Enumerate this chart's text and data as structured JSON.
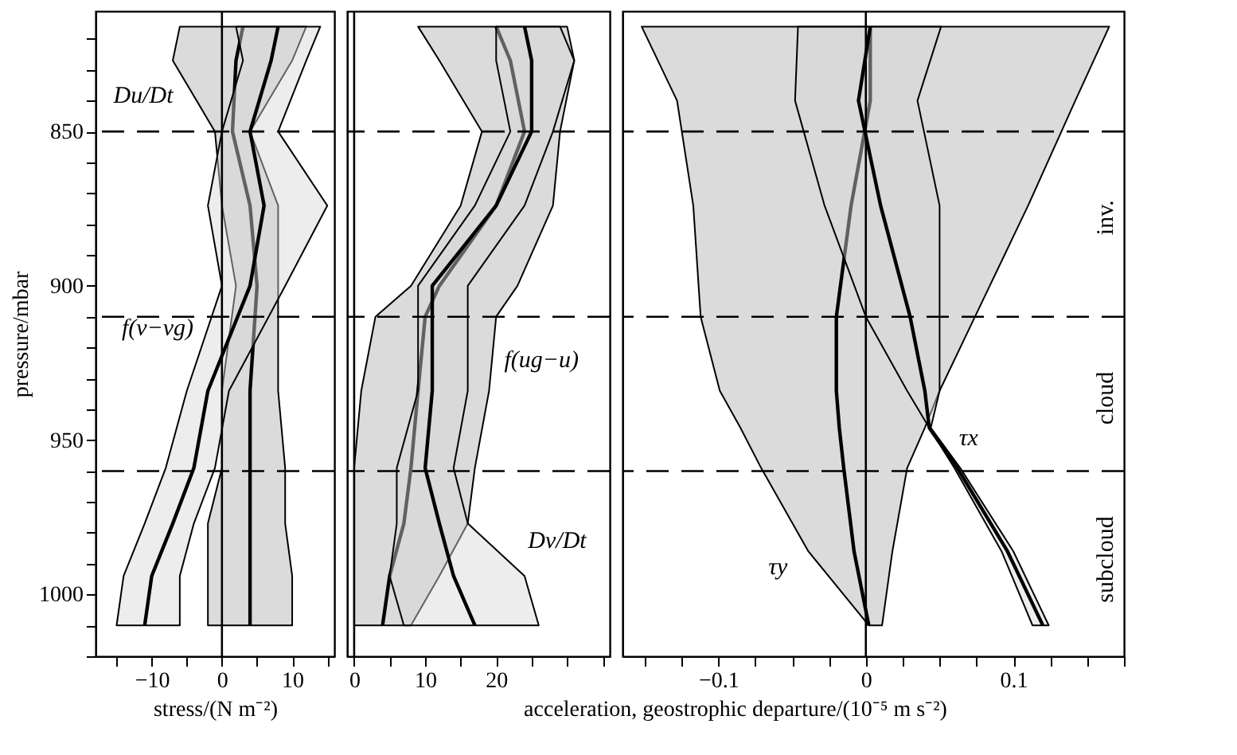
{
  "chart_data": [
    {
      "type": "line",
      "orientation": "horizontal",
      "ylabel": "pressure/mbar",
      "xlabel": "stress/(N m⁻²)",
      "tick_labels": "xy",
      "grid": false,
      "line_style": "solid",
      "marker": "none",
      "xlim": [
        -18,
        16
      ],
      "xticks": [
        {
          "value": -15,
          "label": null
        },
        -10,
        {
          "value": -5,
          "label": null
        },
        0,
        {
          "value": 5,
          "label": null
        },
        10,
        {
          "value": 15,
          "label": null
        }
      ],
      "ylim": [
        1020,
        811
      ],
      "yticks": [
        {
          "value": 820,
          "label": null
        },
        {
          "value": 830,
          "label": null
        },
        {
          "value": 840,
          "label": null
        },
        850,
        {
          "value": 860,
          "label": null
        },
        {
          "value": 870,
          "label": null
        },
        {
          "value": 880,
          "label": null
        },
        {
          "value": 890,
          "label": null
        },
        900,
        {
          "value": 910,
          "label": null
        },
        {
          "value": 920,
          "label": null
        },
        {
          "value": 930,
          "label": null
        },
        {
          "value": 940,
          "label": null
        },
        950,
        {
          "value": 960,
          "label": null
        },
        {
          "value": 970,
          "label": null
        },
        {
          "value": 980,
          "label": null
        },
        {
          "value": 990,
          "label": null
        },
        1000,
        {
          "value": 1010,
          "label": null
        },
        {
          "value": 1020,
          "label": null
        }
      ],
      "series": [
        {
          "color": "#000000",
          "x": [
            816,
            827,
            850,
            874,
            900,
            934,
            959,
            977,
            994,
            1010
          ],
          "values": [
            3,
            2,
            1.5,
            4,
            5,
            4,
            4,
            4,
            4,
            4
          ],
          "lower": [
            -6,
            -7,
            -1,
            0,
            2,
            0,
            0,
            -2,
            -2,
            -2
          ],
          "upper": [
            12,
            10,
            4,
            8,
            8,
            8,
            9,
            9,
            10,
            10
          ]
        },
        {
          "color": "#000000",
          "x": [
            816,
            827,
            850,
            874,
            900,
            934,
            959,
            977,
            994,
            1010
          ],
          "values": [
            8,
            7,
            4,
            6,
            4,
            -2,
            -4,
            -7,
            -10,
            -11
          ],
          "lower": [
            2,
            3,
            0,
            -2,
            0,
            -5,
            -8,
            -11,
            -14,
            -15
          ],
          "upper": [
            14,
            12,
            8,
            15,
            9,
            1,
            -1,
            -4,
            -6,
            -6
          ]
        }
      ],
      "ref_lines": [
        {
          "axis": "x",
          "value": 0,
          "line_style": "solid"
        },
        {
          "axis": "y",
          "value": 850,
          "line_style": "dashed"
        },
        {
          "axis": "y",
          "value": 910,
          "line_style": "dashed"
        },
        {
          "axis": "y",
          "value": 960,
          "line_style": "dashed"
        }
      ],
      "annotations": [
        "Du/Dt",
        "f(v−vg)"
      ]
    },
    {
      "type": "line",
      "orientation": "horizontal",
      "xlabel": "acceleration, geostrophic departure/(10⁻⁵ m s⁻²)",
      "tick_labels": "x",
      "grid": false,
      "line_style": "solid",
      "marker": "none",
      "xlim": [
        -1,
        36
      ],
      "xticks": [
        0,
        {
          "value": 5,
          "label": null
        },
        10,
        {
          "value": 15,
          "label": null
        },
        20,
        {
          "value": 25,
          "label": null
        },
        {
          "value": 30,
          "label": null
        },
        {
          "value": 35,
          "label": null
        }
      ],
      "ylim": [
        1020,
        811
      ],
      "series": [
        {
          "color": "#000000",
          "x": [
            816,
            827,
            850,
            874,
            900,
            910,
            934,
            959,
            977,
            994,
            1010
          ],
          "values": [
            20,
            22,
            24,
            20,
            12,
            10,
            9,
            8,
            7,
            5,
            4
          ],
          "lower": [
            9,
            12,
            18,
            15,
            8,
            3,
            1,
            0,
            0,
            0,
            0
          ],
          "upper": [
            30,
            31,
            29,
            28,
            23,
            20,
            19,
            17,
            16,
            12,
            8
          ]
        },
        {
          "color": "#000000",
          "x": [
            816,
            827,
            850,
            874,
            900,
            934,
            959,
            977,
            994,
            1010
          ],
          "values": [
            24,
            25,
            25,
            20,
            11,
            11,
            10,
            12,
            14,
            17
          ],
          "lower": [
            20,
            20,
            22,
            17,
            9,
            9,
            6,
            6,
            5,
            7
          ],
          "upper": [
            29,
            31,
            28,
            24,
            16,
            16,
            14,
            16,
            24,
            26
          ]
        }
      ],
      "ref_lines": [
        {
          "axis": "x",
          "value": 0,
          "line_style": "solid"
        },
        {
          "axis": "y",
          "value": 850,
          "line_style": "dashed"
        },
        {
          "axis": "y",
          "value": 910,
          "line_style": "dashed"
        },
        {
          "axis": "y",
          "value": 960,
          "line_style": "dashed"
        }
      ],
      "annotations": [
        "f(ug−u)",
        "Dv/Dt"
      ]
    },
    {
      "type": "line",
      "orientation": "horizontal",
      "tick_labels": "x",
      "grid": false,
      "line_style": "solid",
      "marker": "none",
      "xlim": [
        -0.165,
        0.175
      ],
      "xticks": [
        {
          "value": -0.15,
          "label": null
        },
        {
          "value": -0.125,
          "label": null
        },
        -0.1,
        {
          "value": -0.075,
          "label": null
        },
        {
          "value": -0.05,
          "label": null
        },
        {
          "value": -0.025,
          "label": null
        },
        0,
        {
          "value": 0.025,
          "label": null
        },
        {
          "value": 0.05,
          "label": null
        },
        {
          "value": 0.075,
          "label": null
        },
        0.1,
        {
          "value": 0.125,
          "label": null
        },
        {
          "value": 0.15,
          "label": null
        },
        {
          "value": 0.175,
          "label": null
        }
      ],
      "ylim": [
        1020,
        811
      ],
      "series": [
        {
          "color": "#000000",
          "x": [
            816,
            840,
            874,
            910,
            934,
            946,
            959,
            986,
            1010
          ],
          "values": [
            0.003,
            0.003,
            -0.01,
            -0.02,
            -0.02,
            -0.018,
            -0.015,
            -0.008,
            0.002
          ],
          "lower": [
            -0.152,
            -0.128,
            -0.117,
            -0.112,
            -0.099,
            -0.085,
            -0.071,
            -0.039,
            0.002
          ],
          "upper": [
            0.165,
            0.142,
            0.11,
            0.074,
            0.05,
            0.04,
            0.028,
            0.018,
            0.011
          ]
        },
        {
          "color": "#000000",
          "x": [
            816,
            840,
            874,
            910,
            934,
            946,
            959,
            986,
            1010
          ],
          "values": [
            0.003,
            -0.005,
            0.01,
            0.03,
            0.04,
            0.043,
            0.062,
            0.096,
            0.12
          ],
          "lower": [
            -0.046,
            -0.048,
            -0.028,
            0,
            0.028,
            0.043,
            0.06,
            0.092,
            0.113
          ],
          "upper": [
            0.051,
            0.035,
            0.05,
            0.05,
            0.05,
            0.044,
            0.064,
            0.1,
            0.124
          ]
        }
      ],
      "ref_lines": [
        {
          "axis": "x",
          "value": 0,
          "line_style": "solid"
        },
        {
          "axis": "y",
          "value": 850,
          "line_style": "dashed"
        },
        {
          "axis": "y",
          "value": 910,
          "line_style": "dashed"
        },
        {
          "axis": "y",
          "value": 960,
          "line_style": "dashed"
        }
      ],
      "annotations": [
        "τx",
        "τy",
        "inv.",
        "cloud",
        "subcloud"
      ]
    }
  ]
}
